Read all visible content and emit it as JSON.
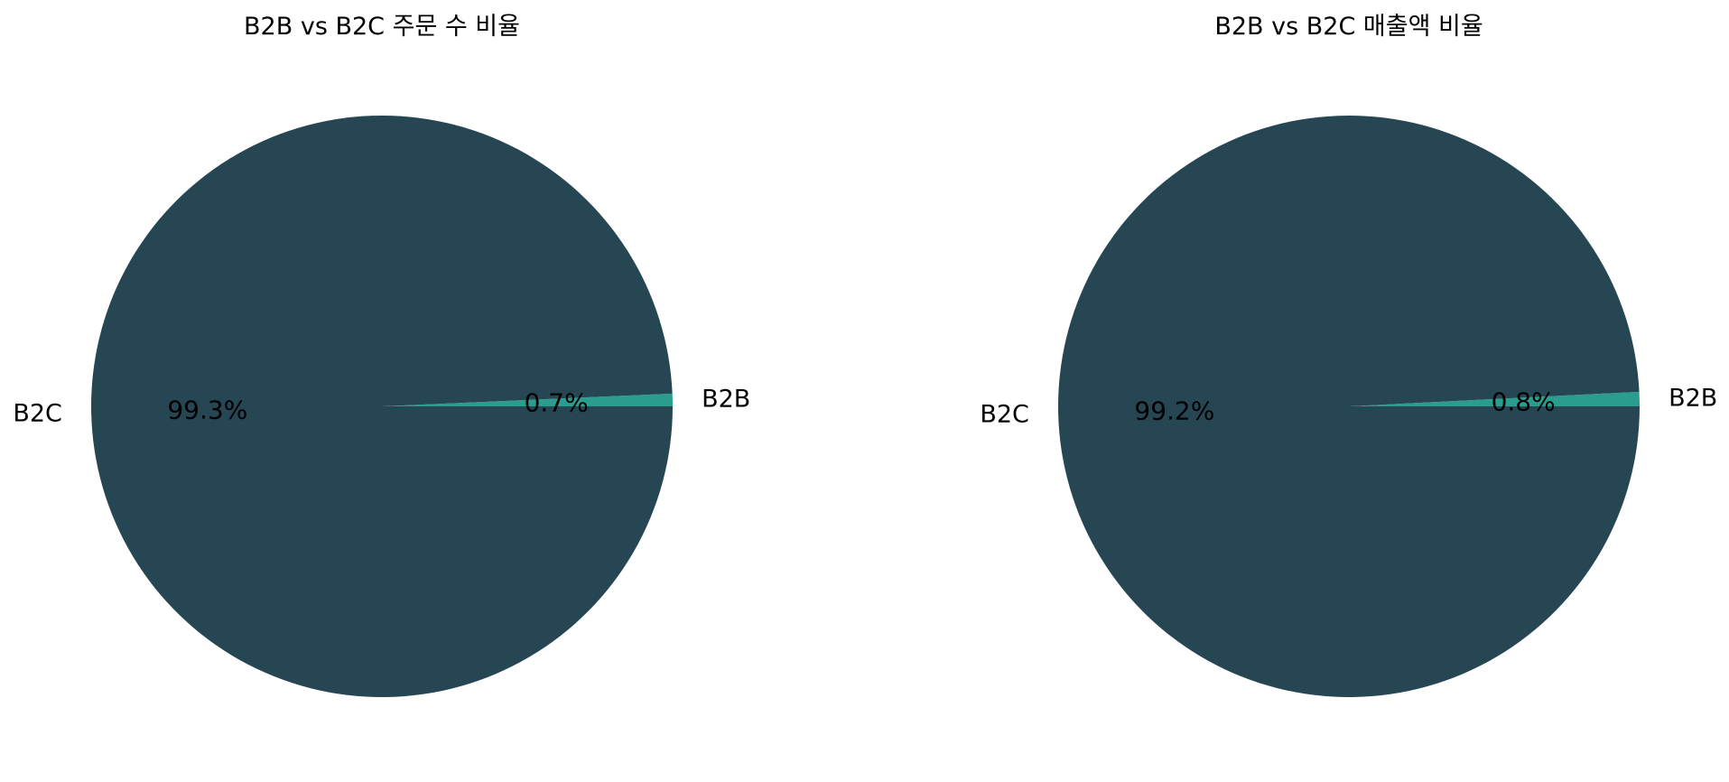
{
  "chart_data": [
    {
      "type": "pie",
      "title": "B2B vs B2C 주문 수 비율",
      "categories": [
        "B2B",
        "B2C"
      ],
      "values": [
        0.7,
        99.3
      ],
      "value_labels": [
        "0.7%",
        "99.3%"
      ],
      "colors": [
        "#2a9d8f",
        "#264653"
      ]
    },
    {
      "type": "pie",
      "title": "B2B vs B2C 매출액 비율",
      "categories": [
        "B2B",
        "B2C"
      ],
      "values": [
        0.8,
        99.2
      ],
      "value_labels": [
        "0.8%",
        "99.2%"
      ],
      "colors": [
        "#2a9d8f",
        "#264653"
      ]
    }
  ]
}
